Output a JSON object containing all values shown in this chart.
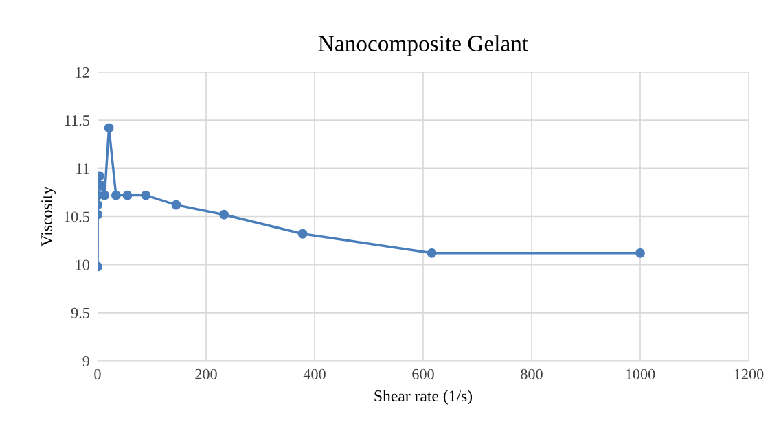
{
  "chart_data": {
    "type": "line",
    "title": "Nanocomposite Gelant",
    "xlabel": "Shear rate (1/s)",
    "ylabel": "Viscosity",
    "x": [
      0.1,
      0.2,
      0.3,
      0.5,
      0.8,
      4,
      4.5,
      5,
      6,
      8,
      13,
      21,
      34,
      55,
      89,
      145,
      233,
      378,
      616,
      1000
    ],
    "series": [
      {
        "color": "#4a7ebb",
        "values": [
          9.98,
          10.52,
          10.62,
          10.72,
          10.92,
          10.92,
          10.82,
          10.82,
          10.82,
          10.82,
          10.72,
          11.42,
          10.72,
          10.72,
          10.72,
          10.62,
          10.52,
          10.32,
          10.12,
          10.12
        ]
      }
    ],
    "xlim": [
      0,
      1200
    ],
    "xticks": [
      0,
      200,
      400,
      600,
      800,
      1000,
      1200
    ],
    "ylim": [
      9,
      12
    ],
    "yticks": [
      9,
      9.5,
      10,
      10.5,
      11,
      11.5,
      12
    ],
    "grid": true,
    "marker": "circle",
    "line_style": "solid",
    "legend": false
  }
}
